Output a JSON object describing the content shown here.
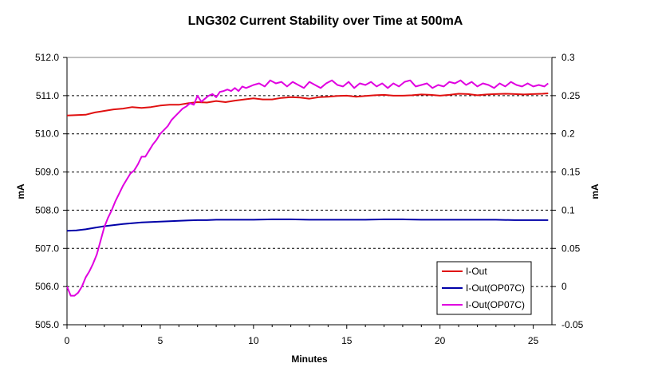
{
  "chart_data": {
    "type": "line",
    "title": "LNG302 Current Stability over Time at 500mA",
    "xlabel": "Minutes",
    "ylabel": "mA",
    "y2label": "mA",
    "xlim": [
      0,
      26
    ],
    "ylim": [
      505.0,
      512.0
    ],
    "y2lim": [
      -0.05,
      0.3
    ],
    "x_ticks": [
      "0",
      "5",
      "10",
      "15",
      "20",
      "25"
    ],
    "x_tick_values": [
      0,
      5,
      10,
      15,
      20,
      25
    ],
    "y_ticks": [
      "505.0",
      "506.0",
      "507.0",
      "508.0",
      "509.0",
      "510.0",
      "511.0",
      "512.0"
    ],
    "y_tick_values": [
      505,
      506,
      507,
      508,
      509,
      510,
      511,
      512
    ],
    "y2_ticks": [
      "-0.05",
      "0",
      "0.05",
      "0.1",
      "0.15",
      "0.2",
      "0.25",
      "0.3"
    ],
    "y2_tick_values": [
      -0.05,
      0,
      0.05,
      0.1,
      0.15,
      0.2,
      0.25,
      0.3
    ],
    "grid": "horizontal dashed",
    "legend_position": "bottom-right",
    "series": [
      {
        "name": "I-Out",
        "axis": "left",
        "color": "#e01010",
        "x": [
          0,
          0.5,
          1,
          1.5,
          2,
          2.5,
          3,
          3.5,
          4,
          4.5,
          5,
          5.5,
          6,
          6.5,
          7,
          7.5,
          8,
          8.5,
          9,
          9.5,
          10,
          10.5,
          11,
          11.5,
          12,
          12.5,
          13,
          13.5,
          14,
          14.5,
          15,
          15.5,
          16,
          16.5,
          17,
          17.5,
          18,
          18.5,
          19,
          19.5,
          20,
          20.5,
          21,
          21.5,
          22,
          22.5,
          23,
          23.5,
          24,
          24.5,
          25,
          25.5,
          25.8
        ],
        "y": [
          510.48,
          510.49,
          510.5,
          510.56,
          510.6,
          510.64,
          510.66,
          510.7,
          510.68,
          510.7,
          510.74,
          510.76,
          510.76,
          510.8,
          510.83,
          510.82,
          510.86,
          510.83,
          510.87,
          510.9,
          510.93,
          510.9,
          510.9,
          510.94,
          510.96,
          510.95,
          510.92,
          510.96,
          510.97,
          510.99,
          511.0,
          510.97,
          510.99,
          511.01,
          511.02,
          511.0,
          511.0,
          511.01,
          511.03,
          511.02,
          511.0,
          511.02,
          511.05,
          511.04,
          511.01,
          511.03,
          511.04,
          511.05,
          511.04,
          511.03,
          511.04,
          511.05,
          511.06
        ]
      },
      {
        "name": "I-Out(OP07C)",
        "axis": "left",
        "color": "#0000a8",
        "x": [
          0,
          0.5,
          1,
          1.5,
          2,
          2.5,
          3,
          3.5,
          4,
          4.5,
          5,
          5.5,
          6,
          6.5,
          7,
          7.5,
          8,
          9,
          10,
          11,
          12,
          13,
          14,
          15,
          16,
          17,
          18,
          19,
          20,
          21,
          22,
          23,
          24,
          25,
          25.8
        ],
        "y": [
          507.46,
          507.47,
          507.5,
          507.54,
          507.58,
          507.61,
          507.64,
          507.66,
          507.68,
          507.69,
          507.7,
          507.71,
          507.72,
          507.73,
          507.74,
          507.74,
          507.75,
          507.75,
          507.75,
          507.76,
          507.76,
          507.75,
          507.75,
          507.75,
          507.75,
          507.76,
          507.76,
          507.75,
          507.75,
          507.75,
          507.75,
          507.75,
          507.74,
          507.74,
          507.74
        ]
      },
      {
        "name": "I-Out(OP07C)",
        "axis": "right",
        "color": "#e000e0",
        "x": [
          0,
          0.2,
          0.4,
          0.6,
          0.8,
          1,
          1.2,
          1.4,
          1.6,
          1.8,
          2,
          2.2,
          2.4,
          2.6,
          2.8,
          3,
          3.2,
          3.4,
          3.6,
          3.8,
          4,
          4.2,
          4.4,
          4.6,
          4.8,
          5,
          5.2,
          5.4,
          5.6,
          5.8,
          6,
          6.2,
          6.4,
          6.6,
          6.8,
          7,
          7.2,
          7.4,
          7.6,
          7.8,
          8,
          8.2,
          8.4,
          8.6,
          8.8,
          9,
          9.2,
          9.4,
          9.6,
          9.8,
          10,
          10.3,
          10.6,
          10.9,
          11.2,
          11.5,
          11.8,
          12.1,
          12.4,
          12.7,
          13,
          13.3,
          13.6,
          13.9,
          14.2,
          14.5,
          14.8,
          15.1,
          15.4,
          15.7,
          16,
          16.3,
          16.6,
          16.9,
          17.2,
          17.5,
          17.8,
          18.1,
          18.4,
          18.7,
          19,
          19.3,
          19.6,
          19.9,
          20.2,
          20.5,
          20.8,
          21.1,
          21.4,
          21.7,
          22,
          22.3,
          22.6,
          22.9,
          23.2,
          23.5,
          23.8,
          24.1,
          24.4,
          24.7,
          25,
          25.3,
          25.6,
          25.8
        ],
        "y": [
          0.0,
          -0.012,
          -0.012,
          -0.008,
          0.0,
          0.012,
          0.02,
          0.03,
          0.042,
          0.06,
          0.078,
          0.09,
          0.1,
          0.112,
          0.122,
          0.132,
          0.14,
          0.148,
          0.152,
          0.16,
          0.17,
          0.17,
          0.178,
          0.186,
          0.192,
          0.2,
          0.205,
          0.21,
          0.218,
          0.223,
          0.228,
          0.233,
          0.236,
          0.24,
          0.238,
          0.25,
          0.242,
          0.246,
          0.25,
          0.252,
          0.248,
          0.255,
          0.256,
          0.258,
          0.256,
          0.26,
          0.256,
          0.262,
          0.26,
          0.262,
          0.264,
          0.266,
          0.262,
          0.27,
          0.266,
          0.268,
          0.262,
          0.268,
          0.264,
          0.26,
          0.268,
          0.264,
          0.26,
          0.266,
          0.27,
          0.264,
          0.262,
          0.268,
          0.26,
          0.266,
          0.264,
          0.268,
          0.262,
          0.266,
          0.26,
          0.266,
          0.262,
          0.268,
          0.27,
          0.262,
          0.264,
          0.266,
          0.26,
          0.264,
          0.262,
          0.268,
          0.266,
          0.27,
          0.264,
          0.268,
          0.262,
          0.266,
          0.264,
          0.26,
          0.266,
          0.262,
          0.268,
          0.264,
          0.262,
          0.266,
          0.262,
          0.264,
          0.262,
          0.266
        ]
      }
    ]
  }
}
